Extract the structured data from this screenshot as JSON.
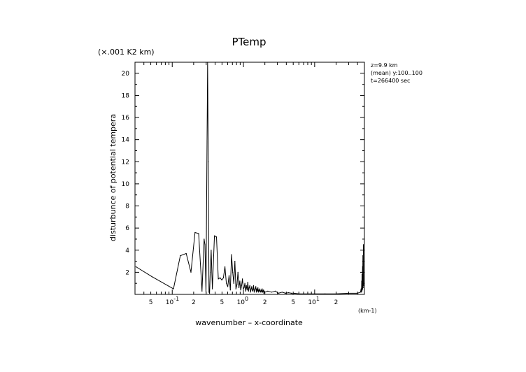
{
  "chart_data": {
    "type": "line",
    "title": "PTemp",
    "xlabel": "wavenumber – x-coordinate",
    "ylabel": "disturbunce of potential tempera",
    "x_unit": "(km-1)",
    "y_unit": "(×.001 K2 km)",
    "x_scale": "log",
    "xlim": [
      0.03,
      50
    ],
    "ylim": [
      0,
      21
    ],
    "y_ticks": [
      2,
      4,
      6,
      8,
      10,
      12,
      14,
      16,
      18,
      20
    ],
    "x_ticks": [
      {
        "value": 0.05,
        "label": "5"
      },
      {
        "value": 0.1,
        "label": "10",
        "exp": "-1"
      },
      {
        "value": 0.2,
        "label": "2"
      },
      {
        "value": 0.5,
        "label": "5"
      },
      {
        "value": 1,
        "label": "10",
        "exp": "0"
      },
      {
        "value": 2,
        "label": "2"
      },
      {
        "value": 5,
        "label": "5"
      },
      {
        "value": 10,
        "label": "10",
        "exp": "1"
      },
      {
        "value": 20,
        "label": "2"
      }
    ],
    "info": [
      "z=9.9 km",
      "(mean) y:100..100",
      "t=266400 sec"
    ],
    "series": [
      {
        "x": [
          0.031,
          0.052,
          0.104,
          0.13,
          0.157,
          0.183,
          0.209,
          0.235,
          0.262,
          0.28,
          0.288,
          0.298,
          0.314,
          0.32,
          0.328,
          0.334,
          0.342,
          0.352,
          0.366,
          0.392,
          0.418,
          0.444,
          0.471,
          0.497,
          0.523,
          0.55,
          0.576,
          0.602,
          0.628,
          0.654,
          0.68,
          0.707,
          0.733,
          0.759,
          0.785,
          0.811,
          0.838,
          0.864,
          0.89,
          0.916,
          0.942,
          0.969,
          0.995,
          1.021,
          1.047,
          1.073,
          1.099,
          1.126,
          1.152,
          1.178,
          1.204,
          1.23,
          1.257,
          1.283,
          1.309,
          1.335,
          1.361,
          1.388,
          1.414,
          1.44,
          1.466,
          1.492,
          1.518,
          1.545,
          1.571,
          1.597,
          1.623,
          1.649,
          1.676,
          1.702,
          1.728,
          1.754,
          1.78,
          1.806,
          1.833,
          1.859,
          1.885,
          1.911,
          1.937,
          1.964,
          1.99,
          2.2,
          2.5,
          2.8,
          3.1,
          3.5,
          3.9,
          4.3,
          4.7,
          5.0,
          5.2,
          6.0,
          8.0,
          10.0,
          14.0,
          20.0,
          30.0,
          40.0,
          44.0,
          45.0,
          45.5,
          45.8,
          46.0,
          46.3,
          46.6,
          47.0,
          47.3,
          47.6,
          48.0,
          48.3,
          48.6
        ],
        "y": [
          2.5,
          1.6,
          0.5,
          3.5,
          3.7,
          2.0,
          5.6,
          5.5,
          0.3,
          5.0,
          4.5,
          0.2,
          21.0,
          12.0,
          0.2,
          0.1,
          2.0,
          4.0,
          0.5,
          5.3,
          5.2,
          1.4,
          1.5,
          1.3,
          1.5,
          2.5,
          1.0,
          0.7,
          1.7,
          0.4,
          3.6,
          2.0,
          1.0,
          3.0,
          0.5,
          0.9,
          2.0,
          0.6,
          1.2,
          0.4,
          0.8,
          1.4,
          0.5,
          0.6,
          1.0,
          0.3,
          0.8,
          0.4,
          1.1,
          0.3,
          0.6,
          0.8,
          0.2,
          0.5,
          0.7,
          0.3,
          0.4,
          0.8,
          0.2,
          0.4,
          0.5,
          0.7,
          0.2,
          0.5,
          0.3,
          0.6,
          0.2,
          0.4,
          0.3,
          0.5,
          0.2,
          0.3,
          0.4,
          0.2,
          0.5,
          0.2,
          0.3,
          0.4,
          0.1,
          0.3,
          0.2,
          0.3,
          0.2,
          0.3,
          0.1,
          0.2,
          0.1,
          0.15,
          0.1,
          0.05,
          0.1,
          0.05,
          0.05,
          0.05,
          0.05,
          0.05,
          0.1,
          0.1,
          0.2,
          0.5,
          0.2,
          1.2,
          0.3,
          1.8,
          0.4,
          2.5,
          0.5,
          3.5,
          0.6,
          4.5,
          0.8
        ]
      }
    ]
  }
}
